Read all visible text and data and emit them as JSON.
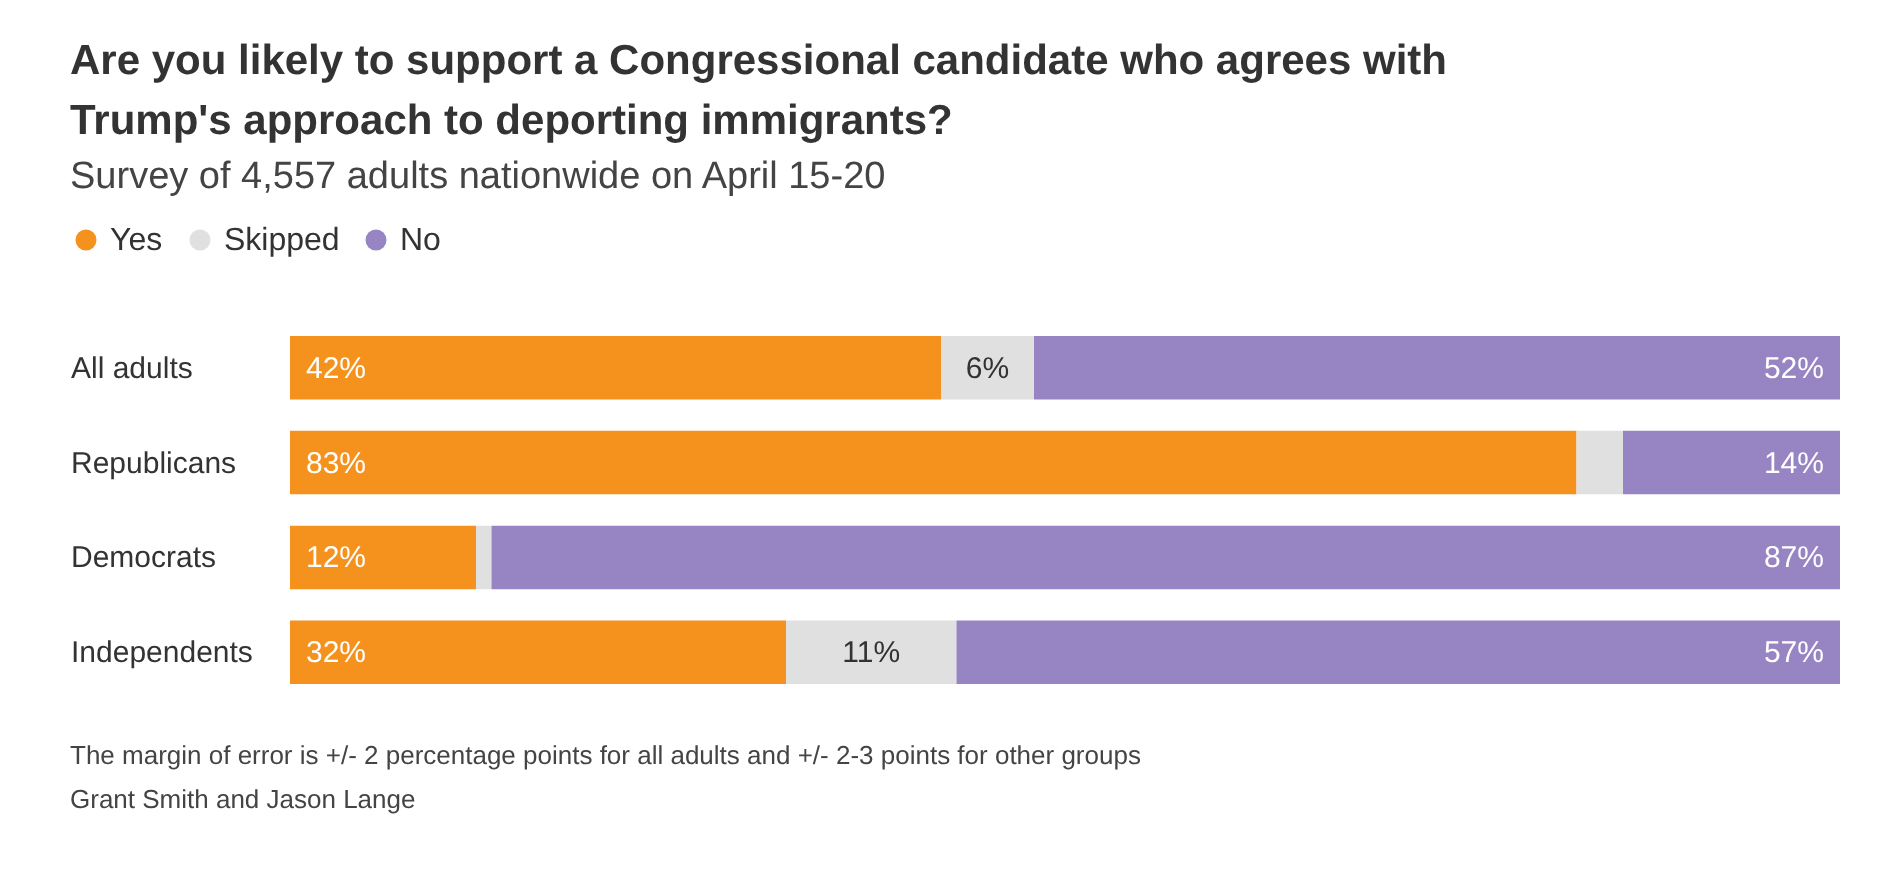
{
  "chart_data": {
    "type": "bar",
    "orientation": "horizontal",
    "stacked": true,
    "title": "Are you likely to support a Congressional candidate who agrees with Trump's approach to deporting immigrants?",
    "subtitle": "Survey of 4,557 adults nationwide on April 15-20",
    "categories": [
      "All adults",
      "Republicans",
      "Democrats",
      "Independents"
    ],
    "series": [
      {
        "name": "Yes",
        "color": "#f5921e",
        "values": [
          42,
          83,
          12,
          32
        ],
        "value_labels": [
          "42%",
          "83%",
          "12%",
          "32%"
        ]
      },
      {
        "name": "Skipped",
        "color": "#e0e0e0",
        "values": [
          6,
          3,
          1,
          11
        ],
        "value_labels": [
          "6%",
          null,
          null,
          "11%"
        ]
      },
      {
        "name": "No",
        "color": "#9784c2",
        "values": [
          52,
          14,
          87,
          57
        ],
        "value_labels": [
          "52%",
          "14%",
          "87%",
          "57%"
        ]
      }
    ],
    "legend": "top left",
    "annotations": [
      "The margin of error is +/- 2 percentage points for all adults and +/- 2-3 points for other groups",
      "Grant Smith and Jason Lange"
    ]
  }
}
